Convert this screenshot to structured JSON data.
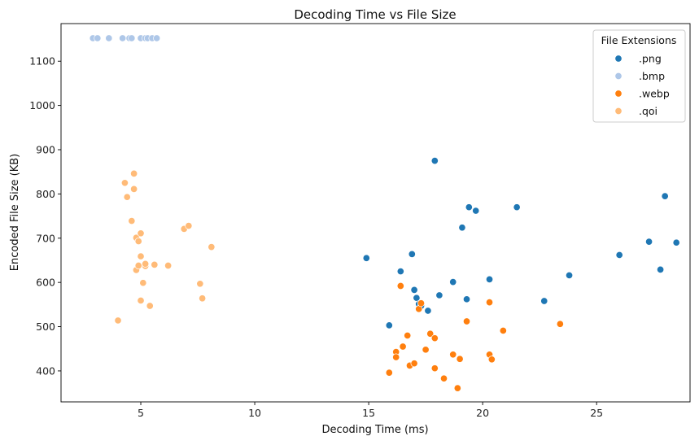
{
  "chart_data": {
    "type": "scatter",
    "title": "Decoding Time vs File Size",
    "xlabel": "Decoding Time (ms)",
    "ylabel": "Encoded File Size (KB)",
    "xlim": [
      1.5,
      29.1
    ],
    "ylim": [
      330,
      1185
    ],
    "xticks": [
      5,
      10,
      15,
      20,
      25
    ],
    "yticks": [
      400,
      500,
      600,
      700,
      800,
      900,
      1000,
      1100
    ],
    "grid": false,
    "legend": {
      "title": "File Extensions",
      "placement": "top-right"
    },
    "series": [
      {
        "name": ".png",
        "color": "#1f77b4",
        "points": [
          [
            14.9,
            655
          ],
          [
            15.9,
            503
          ],
          [
            16.4,
            625
          ],
          [
            16.9,
            664
          ],
          [
            17.0,
            583
          ],
          [
            17.1,
            565
          ],
          [
            17.2,
            551
          ],
          [
            17.3,
            547
          ],
          [
            17.6,
            536
          ],
          [
            17.9,
            875
          ],
          [
            18.1,
            571
          ],
          [
            18.7,
            601
          ],
          [
            19.1,
            724
          ],
          [
            19.3,
            562
          ],
          [
            19.4,
            770
          ],
          [
            19.7,
            762
          ],
          [
            20.3,
            607
          ],
          [
            21.5,
            770
          ],
          [
            22.7,
            558
          ],
          [
            23.8,
            616
          ],
          [
            26.0,
            662
          ],
          [
            27.3,
            692
          ],
          [
            27.8,
            629
          ],
          [
            28.0,
            795
          ],
          [
            28.5,
            690
          ]
        ]
      },
      {
        "name": ".bmp",
        "color": "#aec7e8",
        "points": [
          [
            2.9,
            1152
          ],
          [
            3.1,
            1152
          ],
          [
            3.6,
            1152
          ],
          [
            4.2,
            1152
          ],
          [
            4.5,
            1152
          ],
          [
            4.6,
            1152
          ],
          [
            5.0,
            1152
          ],
          [
            5.2,
            1152
          ],
          [
            5.3,
            1152
          ],
          [
            5.5,
            1152
          ],
          [
            5.7,
            1152
          ]
        ]
      },
      {
        "name": ".webp",
        "color": "#ff7f0e",
        "points": [
          [
            15.9,
            396
          ],
          [
            16.2,
            443
          ],
          [
            16.2,
            431
          ],
          [
            16.4,
            592
          ],
          [
            16.5,
            455
          ],
          [
            16.7,
            480
          ],
          [
            16.8,
            412
          ],
          [
            17.0,
            417
          ],
          [
            17.2,
            540
          ],
          [
            17.3,
            553
          ],
          [
            17.5,
            448
          ],
          [
            17.7,
            484
          ],
          [
            17.9,
            474
          ],
          [
            17.9,
            406
          ],
          [
            18.3,
            383
          ],
          [
            18.7,
            437
          ],
          [
            18.9,
            361
          ],
          [
            19.0,
            427
          ],
          [
            19.3,
            512
          ],
          [
            20.3,
            555
          ],
          [
            20.3,
            437
          ],
          [
            20.4,
            426
          ],
          [
            20.9,
            491
          ],
          [
            23.4,
            506
          ]
        ]
      },
      {
        "name": ".qoi",
        "color": "#ffbb78",
        "points": [
          [
            4.0,
            514
          ],
          [
            4.3,
            825
          ],
          [
            4.4,
            793
          ],
          [
            4.6,
            739
          ],
          [
            4.7,
            846
          ],
          [
            4.7,
            811
          ],
          [
            4.8,
            701
          ],
          [
            4.8,
            628
          ],
          [
            4.9,
            638
          ],
          [
            4.9,
            693
          ],
          [
            5.0,
            711
          ],
          [
            5.0,
            659
          ],
          [
            5.0,
            559
          ],
          [
            5.1,
            599
          ],
          [
            5.2,
            637
          ],
          [
            5.2,
            642
          ],
          [
            5.4,
            547
          ],
          [
            5.6,
            640
          ],
          [
            6.2,
            638
          ],
          [
            6.9,
            721
          ],
          [
            7.1,
            728
          ],
          [
            7.6,
            597
          ],
          [
            7.7,
            564
          ],
          [
            8.1,
            680
          ]
        ]
      }
    ]
  }
}
